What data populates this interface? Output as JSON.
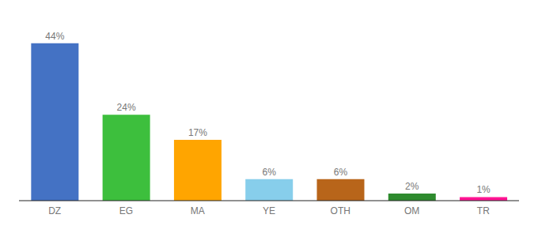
{
  "chart_data": {
    "type": "bar",
    "categories": [
      "DZ",
      "EG",
      "MA",
      "YE",
      "OTH",
      "OM",
      "TR"
    ],
    "values": [
      44,
      24,
      17,
      6,
      6,
      2,
      1
    ],
    "value_labels": [
      "44%",
      "24%",
      "17%",
      "6%",
      "6%",
      "2%",
      "1%"
    ],
    "data_labels": true,
    "colors": [
      "#4472C4",
      "#3DBF3D",
      "#FFA500",
      "#87CEEB",
      "#B8651A",
      "#2E8B2E",
      "#FF1493"
    ],
    "ylim": [
      0,
      49
    ],
    "tick_labels": "x",
    "grid": false
  }
}
